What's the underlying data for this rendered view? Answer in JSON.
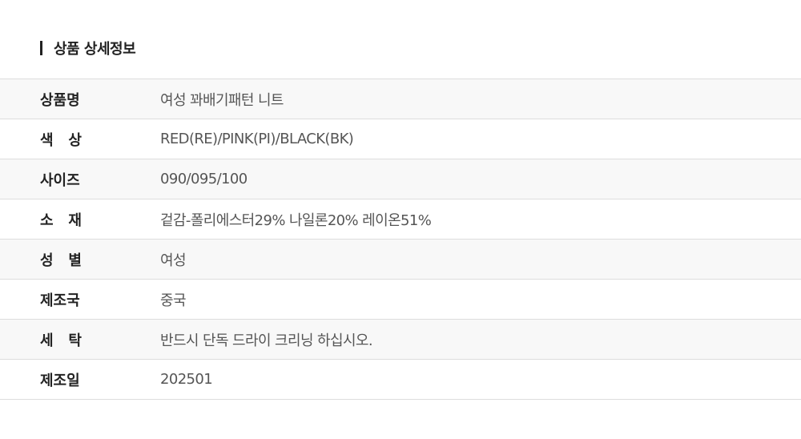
{
  "section_title": "상품 상세정보",
  "rows": [
    {
      "label": "상품명",
      "value": "여성 꽈배기패턴 니트"
    },
    {
      "label": "색 상",
      "value": "RED(RE)/PINK(PI)/BLACK(BK)"
    },
    {
      "label": "사이즈",
      "value": "090/095/100"
    },
    {
      "label": "소 재",
      "value": "겉감-폴리에스터29% 나일론20% 레이온51%"
    },
    {
      "label": "성 별",
      "value": "여성"
    },
    {
      "label": "제조국",
      "value": "중국"
    },
    {
      "label": "세 탁",
      "value": "반드시 단독 드라이 크리닝 하십시오."
    },
    {
      "label": "제조일",
      "value": "202501"
    }
  ]
}
